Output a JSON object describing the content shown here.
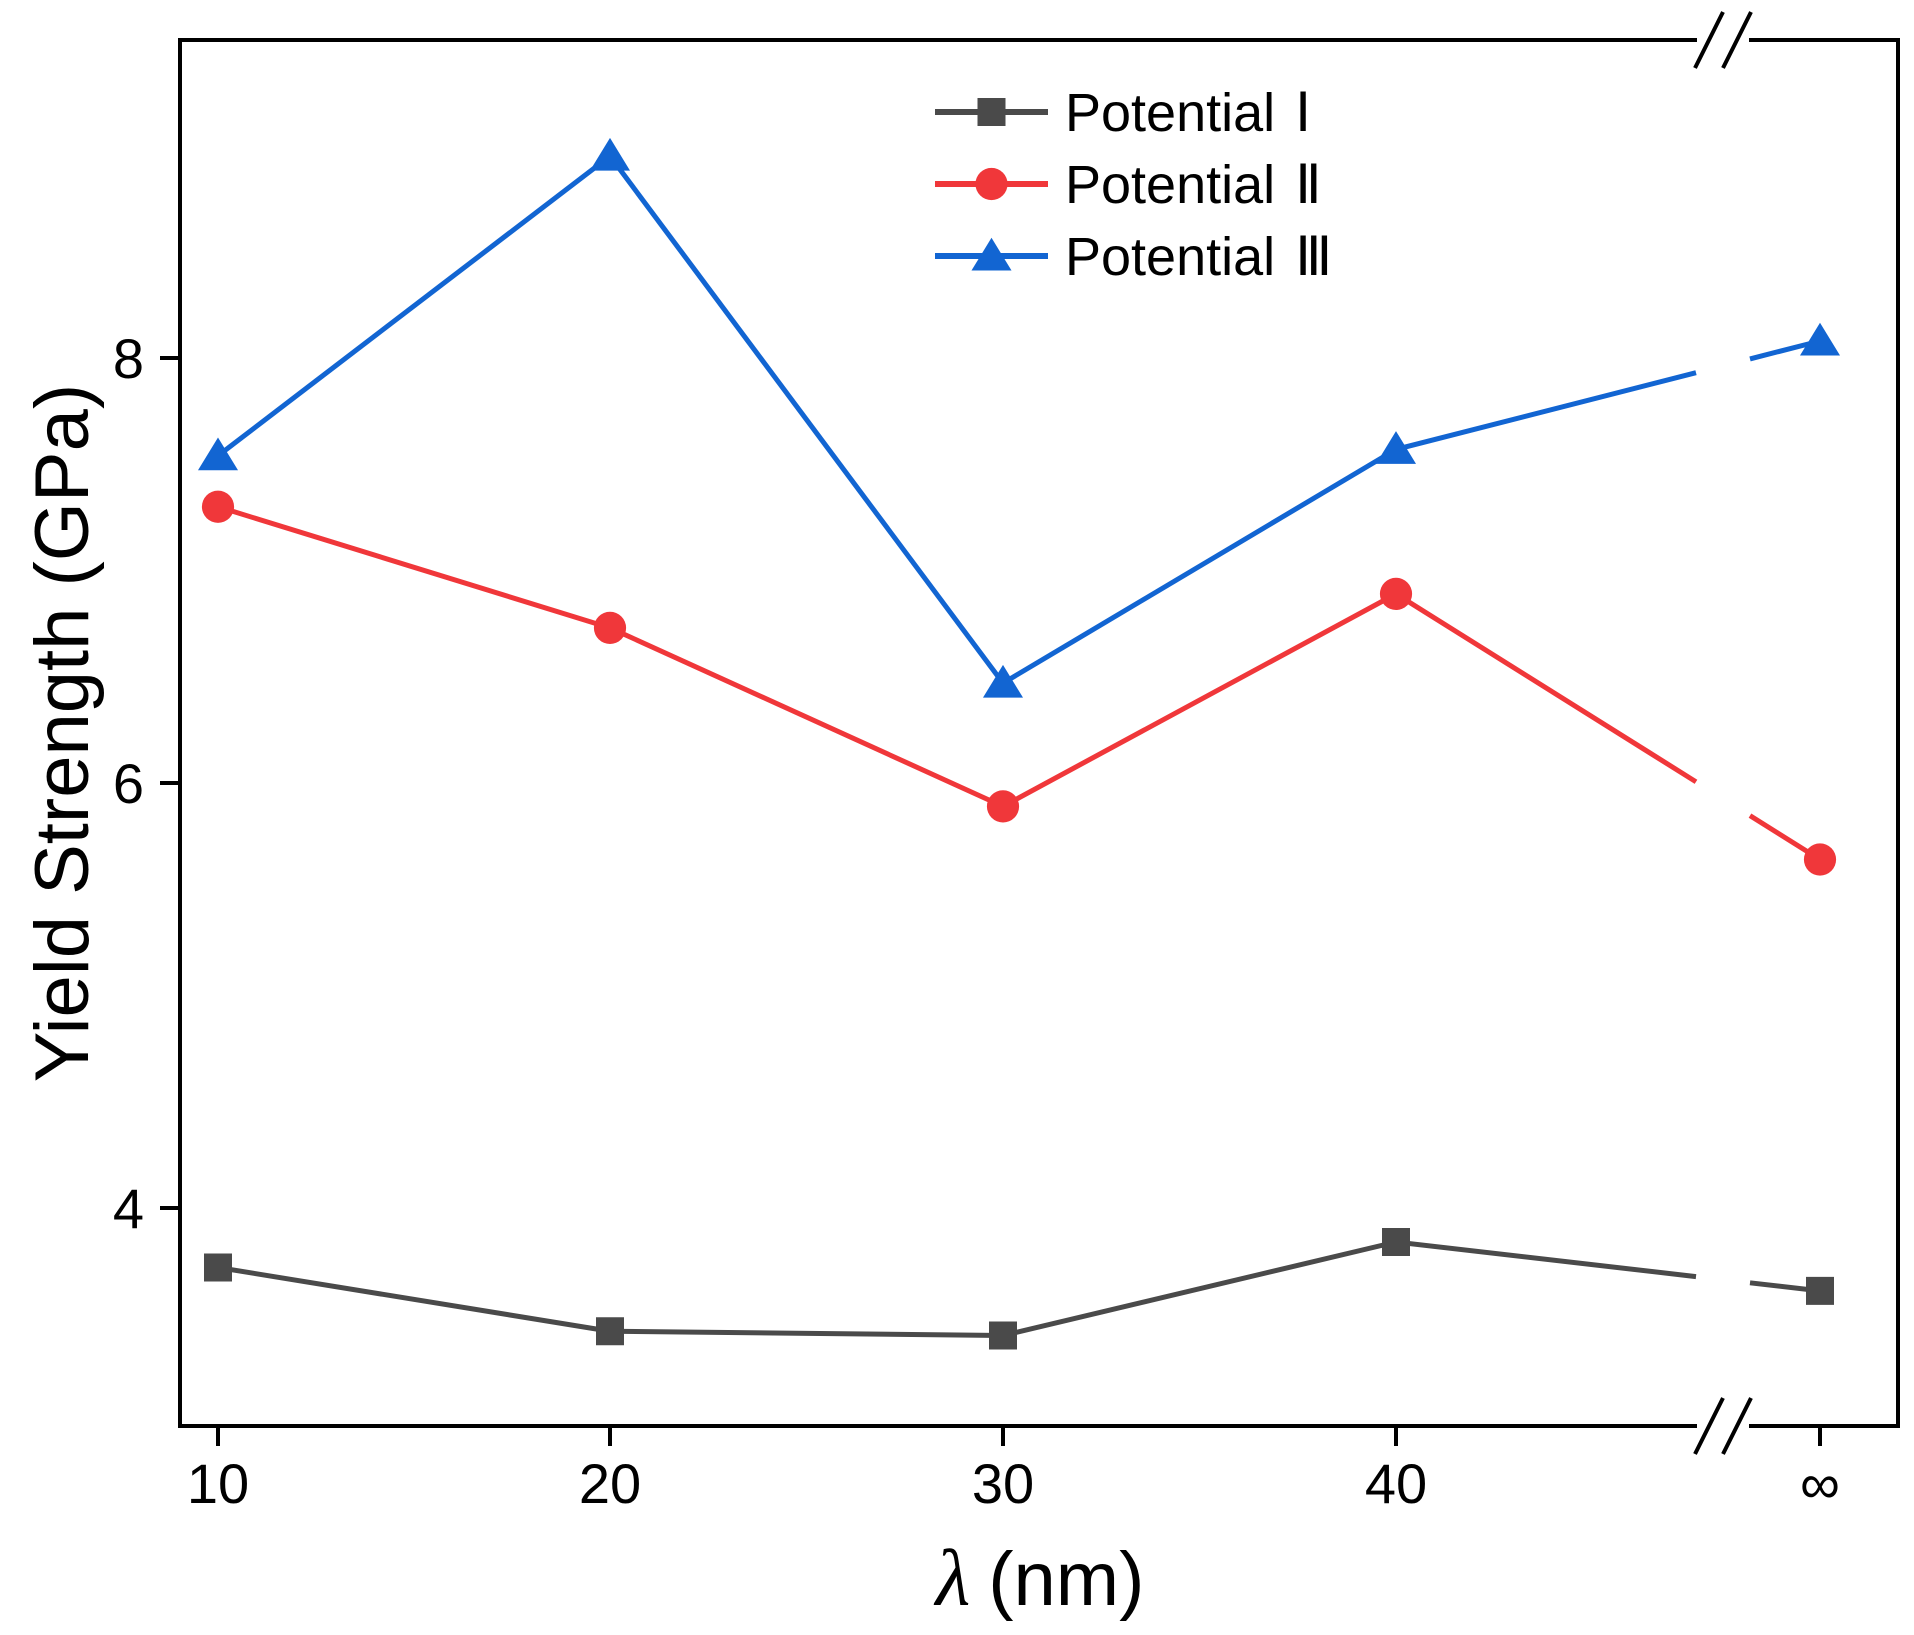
{
  "chart_data": {
    "type": "line",
    "title": "",
    "xlabel_symbol": "λ",
    "xlabel_unit": "(nm)",
    "ylabel": "Yield Strength (GPa)",
    "categories": [
      "10",
      "20",
      "30",
      "40",
      "∞"
    ],
    "x_break": "between 40 and ∞",
    "ylim": [
      3.0,
      9.5
    ],
    "yticks": [
      4,
      6,
      8
    ],
    "legend_position": "top-center",
    "series": [
      {
        "name": "Potential",
        "roman": "Ⅰ",
        "marker": "square",
        "color": "#4a4a4a",
        "values": [
          3.72,
          3.42,
          3.4,
          3.84,
          3.61
        ]
      },
      {
        "name": "Potential",
        "roman": "Ⅱ",
        "marker": "circle",
        "color": "#f0373a",
        "values": [
          7.3,
          6.73,
          5.89,
          6.89,
          5.64
        ]
      },
      {
        "name": "Potential",
        "roman": "Ⅲ",
        "marker": "triangle",
        "color": "#1265d2",
        "values": [
          7.54,
          8.95,
          6.47,
          7.57,
          8.08
        ]
      }
    ]
  }
}
